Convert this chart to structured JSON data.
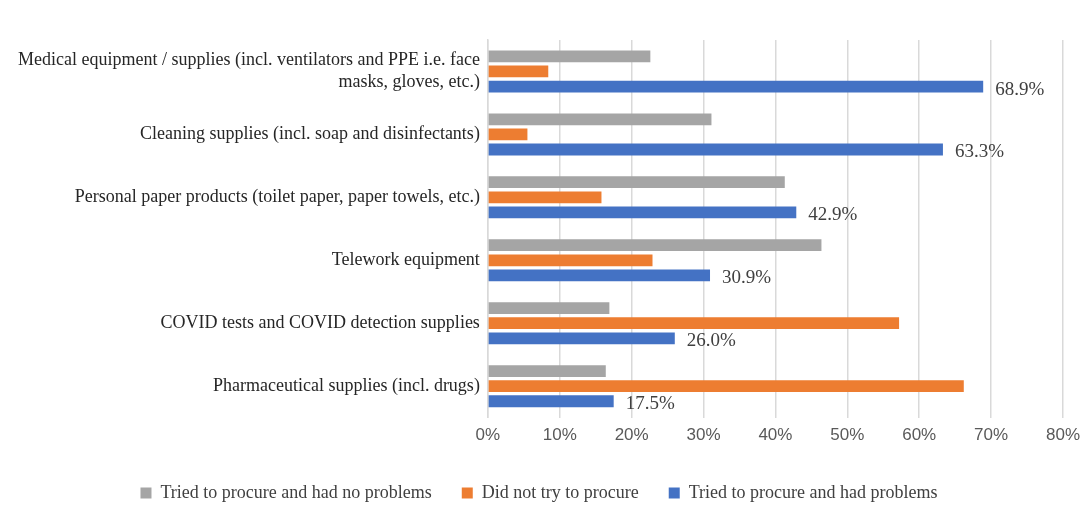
{
  "chart_data": {
    "type": "bar",
    "orientation": "horizontal",
    "categories": [
      "Medical equipment / supplies (incl. ventilators and PPE i.e. face masks, gloves, etc.)",
      "Cleaning supplies (incl. soap and disinfectants)",
      "Personal paper products (toilet paper, paper towels, etc.)",
      "Telework equipment",
      "COVID tests and COVID detection supplies",
      "Pharmaceutical supplies (incl. drugs)"
    ],
    "series": [
      {
        "name": "Tried to procure and had no problems",
        "color": "#a5a5a5",
        "values": [
          22.6,
          31.1,
          41.3,
          46.4,
          16.9,
          16.4
        ]
      },
      {
        "name": "Did not try to procure",
        "color": "#ed7d31",
        "values": [
          8.4,
          5.5,
          15.8,
          22.9,
          57.2,
          66.2
        ]
      },
      {
        "name": "Tried to procure and had problems",
        "color": "#4472c4",
        "values": [
          68.9,
          63.3,
          42.9,
          30.9,
          26.0,
          17.5
        ],
        "value_labels": [
          "68.9%",
          "63.3%",
          "42.9%",
          "30.9%",
          "26.0%",
          "17.5%"
        ]
      }
    ],
    "xlim": [
      0,
      80
    ],
    "xticks": [
      {
        "value": 0,
        "label": "0%"
      },
      {
        "value": 10,
        "label": "10%"
      },
      {
        "value": 20,
        "label": "20%"
      },
      {
        "value": 30,
        "label": "30%"
      },
      {
        "value": 40,
        "label": "40%"
      },
      {
        "value": 50,
        "label": "50%"
      },
      {
        "value": 60,
        "label": "60%"
      },
      {
        "value": 70,
        "label": "70%"
      },
      {
        "value": 80,
        "label": "80%"
      }
    ],
    "grid": "x",
    "legend": "bottom"
  }
}
